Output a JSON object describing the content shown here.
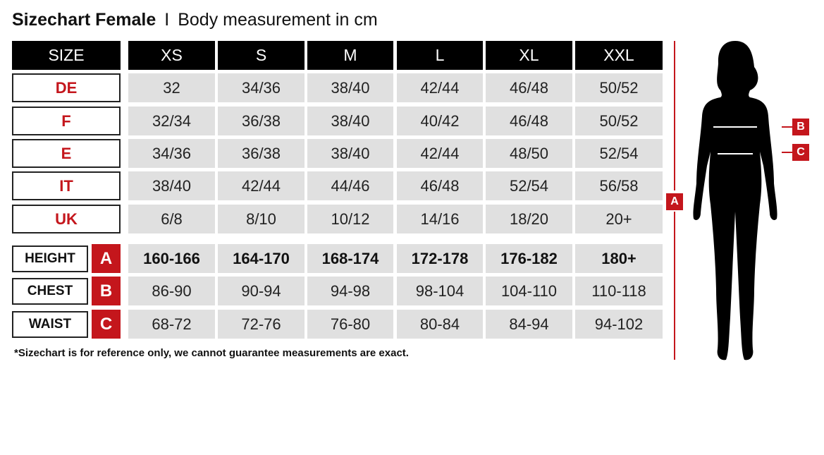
{
  "title": {
    "bold": "Sizechart Female",
    "separator": "I",
    "subtitle": "Body measurement in cm"
  },
  "header": {
    "label": "SIZE",
    "sizes": [
      "XS",
      "S",
      "M",
      "L",
      "XL",
      "XXL"
    ]
  },
  "conversion_rows": [
    {
      "label": "DE",
      "values": [
        "32",
        "34/36",
        "38/40",
        "42/44",
        "46/48",
        "50/52"
      ]
    },
    {
      "label": "F",
      "values": [
        "32/34",
        "36/38",
        "38/40",
        "40/42",
        "46/48",
        "50/52"
      ]
    },
    {
      "label": "E",
      "values": [
        "34/36",
        "36/38",
        "38/40",
        "42/44",
        "48/50",
        "52/54"
      ]
    },
    {
      "label": "IT",
      "values": [
        "38/40",
        "42/44",
        "44/46",
        "46/48",
        "52/54",
        "56/58"
      ]
    },
    {
      "label": "UK",
      "values": [
        "6/8",
        "8/10",
        "10/12",
        "14/16",
        "18/20",
        "20+"
      ]
    }
  ],
  "measurement_rows": [
    {
      "label": "HEIGHT",
      "badge": "A",
      "values": [
        "160-166",
        "164-170",
        "168-174",
        "172-178",
        "176-182",
        "180+"
      ]
    },
    {
      "label": "CHEST",
      "badge": "B",
      "values": [
        "86-90",
        "90-94",
        "94-98",
        "98-104",
        "104-110",
        "110-118"
      ]
    },
    {
      "label": "WAIST",
      "badge": "C",
      "values": [
        "68-72",
        "72-76",
        "76-80",
        "80-84",
        "84-94",
        "94-102"
      ]
    }
  ],
  "footnote": "*Sizechart is for reference only, we cannot guarantee measurements are exact.",
  "figure": {
    "height_marker": "A",
    "chest_marker": "B",
    "waist_marker": "C"
  },
  "colors": {
    "accent": "#c4161c",
    "header_bg": "#000000",
    "cell_bg": "#e0e0e0"
  }
}
